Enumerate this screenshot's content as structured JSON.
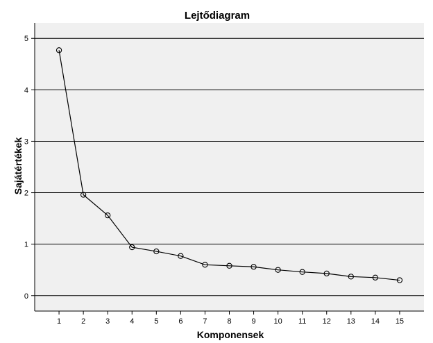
{
  "chart_data": {
    "type": "line",
    "title": "Lejtődiagram",
    "xlabel": "Komponensek",
    "ylabel": "Sajátértékek",
    "x": [
      1,
      2,
      3,
      4,
      5,
      6,
      7,
      8,
      9,
      10,
      11,
      12,
      13,
      14,
      15
    ],
    "series": [
      {
        "values": [
          4.77,
          1.96,
          1.56,
          0.94,
          0.86,
          0.77,
          0.6,
          0.58,
          0.56,
          0.5,
          0.46,
          0.43,
          0.37,
          0.35,
          0.3
        ]
      }
    ],
    "xticks": [
      "1",
      "2",
      "3",
      "4",
      "5",
      "6",
      "7",
      "8",
      "9",
      "10",
      "11",
      "12",
      "13",
      "14",
      "15"
    ],
    "yticks": [
      "0",
      "1",
      "2",
      "3",
      "4",
      "5"
    ],
    "xlim": [
      0,
      16
    ],
    "ylim": [
      -0.3,
      5.3
    ],
    "grid": "horizontal",
    "legend": "none"
  },
  "colors": {
    "plot_background": "#f0f0f0",
    "gridline": "#000000",
    "line": "#000000",
    "marker": "#000000"
  }
}
